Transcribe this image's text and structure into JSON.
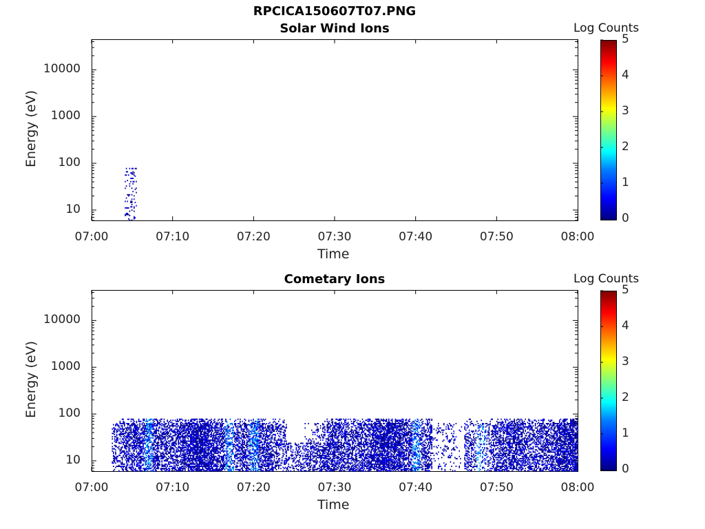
{
  "figure": {
    "title": "RPCICA150607T07.PNG"
  },
  "chart_data": [
    {
      "type": "heatmap",
      "title": "Solar Wind Ions",
      "xlabel": "Time",
      "ylabel": "Energy (eV)",
      "x_ticks": [
        "07:00",
        "07:10",
        "07:20",
        "07:30",
        "07:40",
        "07:50",
        "08:00"
      ],
      "x_range": [
        "07:00",
        "08:00"
      ],
      "y_scale": "log",
      "y_ticks": [
        "10",
        "100",
        "1000",
        "10000"
      ],
      "y_range": [
        6,
        45000
      ],
      "colorbar": {
        "label": "Log Counts",
        "ticks": [
          "0",
          "1",
          "2",
          "3",
          "4",
          "5"
        ],
        "range": [
          0,
          5
        ],
        "colormap": "jet"
      },
      "data_coverage": [
        {
          "t_start_min": 4.1,
          "t_end_min": 5.5,
          "e_min_ev": 6,
          "e_max_ev": 80,
          "log_counts": 0.4,
          "density": "sparse"
        }
      ]
    },
    {
      "type": "heatmap",
      "title": "Cometary Ions",
      "xlabel": "Time",
      "ylabel": "Energy (eV)",
      "x_ticks": [
        "07:00",
        "07:10",
        "07:20",
        "07:30",
        "07:40",
        "07:50",
        "08:00"
      ],
      "x_range": [
        "07:00",
        "08:00"
      ],
      "y_scale": "log",
      "y_ticks": [
        "10",
        "100",
        "1000",
        "10000"
      ],
      "y_range": [
        6,
        45000
      ],
      "colorbar": {
        "label": "Log Counts",
        "ticks": [
          "0",
          "1",
          "2",
          "3",
          "4",
          "5"
        ],
        "range": [
          0,
          5
        ],
        "colormap": "jet"
      },
      "data_coverage": [
        {
          "t_start_min": 2.5,
          "t_end_min": 60,
          "e_min_ev": 6,
          "e_max_ev": 80,
          "log_counts": 0.8,
          "density": "dense",
          "peak_times_min": [
            7,
            17,
            20,
            40,
            48
          ]
        }
      ]
    }
  ],
  "colors": {
    "axis": "#000000",
    "low": "#00007f",
    "mid": "#0000ff",
    "high": "#0080ff",
    "peak": "#00c0ff"
  }
}
